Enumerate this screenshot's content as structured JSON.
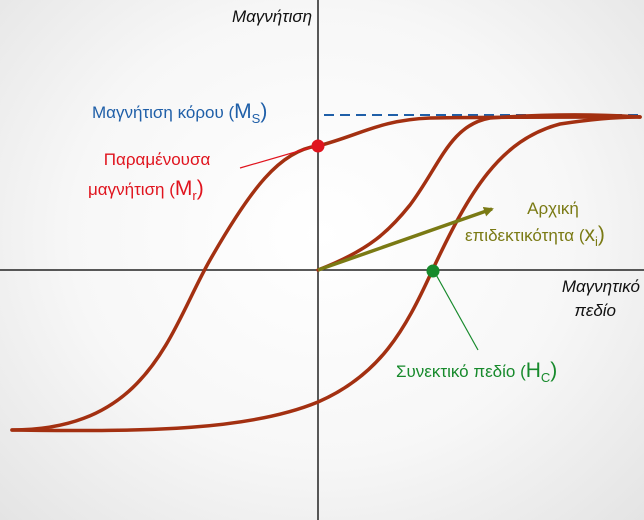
{
  "axes": {
    "y_label": "Μαγνήτιση",
    "x_label_line1": "Μαγνητικό",
    "x_label_line2": "πεδίο"
  },
  "annotations": {
    "saturation": {
      "text": "Μαγνήτιση κόρου (",
      "symbol": "M",
      "subscript": "S",
      "close": ")",
      "color": "#1f5fa8"
    },
    "remanence": {
      "line1": "Παραμένουσα",
      "line2": "μαγνήτιση (",
      "symbol": "M",
      "subscript": "r",
      "close": ")",
      "color": "#e0141e"
    },
    "susceptibility": {
      "line1": "Αρχική",
      "line2": "επιδεκτικότητα (",
      "symbol": "x",
      "subscript": "i",
      "close": ")",
      "color": "#7a7a14"
    },
    "coercivity": {
      "text": "Συνεκτικό πεδίο (",
      "symbol": "H",
      "subscript": "C",
      "close": ")",
      "color": "#178a2c"
    }
  },
  "colors": {
    "curve": "#a33011",
    "axis": "#222222",
    "saturation_line": "#1f5fa8",
    "remanence_point": "#e0141e",
    "coercivity_point": "#178a2c",
    "susceptibility_arrow": "#7a7a14"
  }
}
